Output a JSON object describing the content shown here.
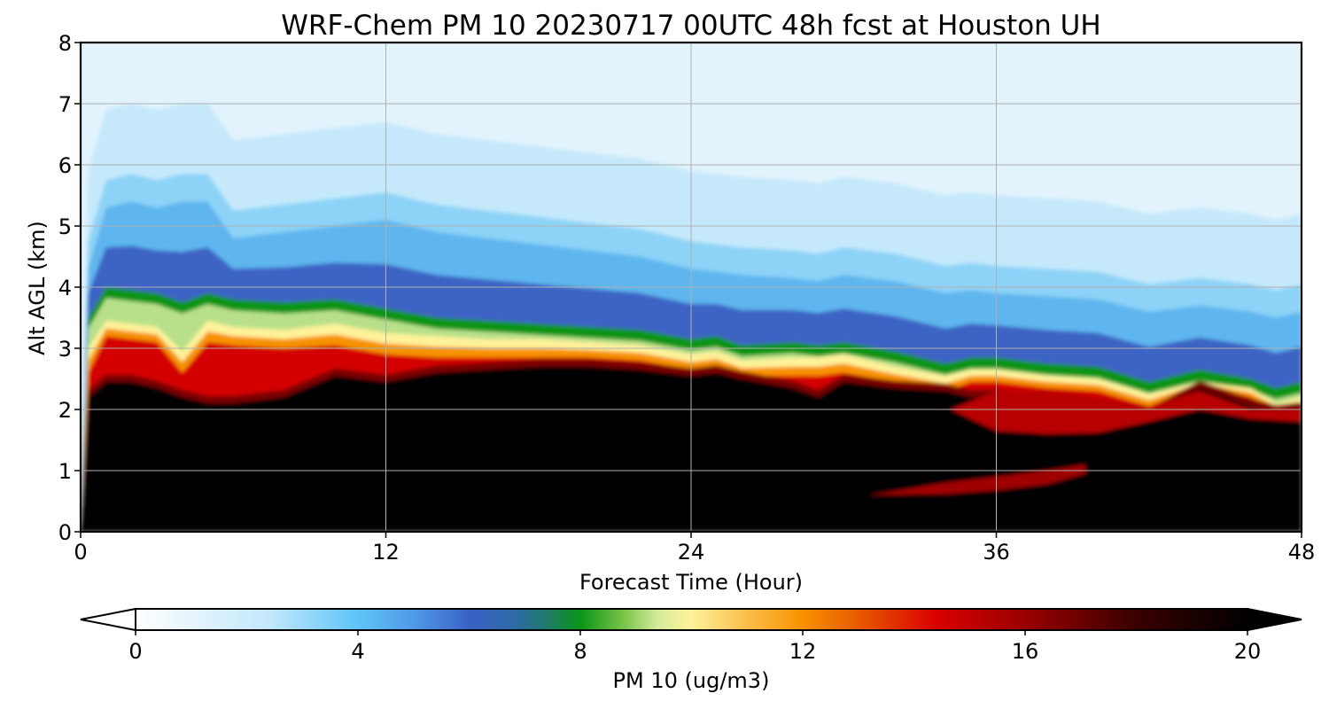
{
  "chart_data": {
    "type": "heatmap",
    "title": "WRF-Chem PM 10  20230717 00UTC 48h fcst at Houston UH",
    "xlabel": "Forecast Time (Hour)",
    "ylabel": "Alt AGL (km)",
    "xlim": [
      0,
      48
    ],
    "ylim": [
      0,
      8
    ],
    "x_ticks": [
      0,
      12,
      24,
      36,
      48
    ],
    "y_ticks": [
      0,
      1,
      2,
      3,
      4,
      5,
      6,
      7,
      8
    ],
    "grid": true,
    "colorbar": {
      "label": "PM 10  (ug/m3)",
      "min": 0,
      "max": 20,
      "levels": 80,
      "ticks": [
        0,
        4,
        8,
        12,
        16,
        20
      ],
      "extend": "both",
      "orientation": "horizontal",
      "placement": "bottom"
    },
    "profile_x": [
      0,
      0.3,
      1,
      2,
      3,
      4,
      5,
      6,
      8,
      10,
      12,
      14,
      16,
      18,
      20,
      22,
      24,
      25,
      26,
      28,
      29,
      30,
      32,
      34,
      35,
      36,
      38,
      40,
      42,
      44,
      46,
      47,
      48
    ],
    "black_core_top_km": [
      0,
      2.2,
      2.45,
      2.45,
      2.35,
      2.2,
      2.1,
      2.1,
      2.2,
      2.55,
      2.45,
      2.6,
      2.65,
      2.7,
      2.7,
      2.65,
      2.55,
      2.6,
      2.5,
      2.35,
      2.2,
      2.45,
      2.35,
      2.3,
      2.2,
      2.2,
      2.15,
      2.05,
      1.9,
      2.35,
      2.05,
      1.95,
      2.0
    ],
    "red_layer_top_km": [
      0,
      2.6,
      3.2,
      3.15,
      3.1,
      2.6,
      3.1,
      3.05,
      3.0,
      3.05,
      2.9,
      2.85,
      2.85,
      2.85,
      2.85,
      2.8,
      2.65,
      2.7,
      2.55,
      2.55,
      2.55,
      2.6,
      2.45,
      2.3,
      2.45,
      2.45,
      2.35,
      2.3,
      2.05,
      2.4,
      2.2,
      2.0,
      2.05
    ],
    "yellow_layer_top_km": [
      0,
      3.0,
      3.45,
      3.4,
      3.35,
      2.95,
      3.45,
      3.35,
      3.3,
      3.4,
      3.25,
      3.2,
      3.15,
      3.15,
      3.1,
      3.05,
      2.9,
      2.95,
      2.8,
      2.85,
      2.85,
      2.9,
      2.7,
      2.55,
      2.65,
      2.65,
      2.55,
      2.5,
      2.25,
      2.45,
      2.35,
      2.1,
      2.2
    ],
    "green_layer_top_km": [
      0,
      3.5,
      4.0,
      3.95,
      3.9,
      3.75,
      3.9,
      3.8,
      3.75,
      3.8,
      3.65,
      3.5,
      3.45,
      3.4,
      3.35,
      3.3,
      3.15,
      3.2,
      3.05,
      3.1,
      3.05,
      3.1,
      2.95,
      2.75,
      2.85,
      2.85,
      2.75,
      2.7,
      2.45,
      2.65,
      2.5,
      2.35,
      2.45
    ],
    "blue_layer_top_km": [
      0,
      4.3,
      5.3,
      5.4,
      5.3,
      5.4,
      5.4,
      4.8,
      4.9,
      5.0,
      5.1,
      4.9,
      4.8,
      4.7,
      4.6,
      4.5,
      4.3,
      4.25,
      4.2,
      4.15,
      4.1,
      4.2,
      4.1,
      3.9,
      3.95,
      3.9,
      3.85,
      3.8,
      3.6,
      3.7,
      3.6,
      3.5,
      3.6
    ],
    "secondary_plume": {
      "x": [
        31,
        34,
        36,
        38,
        39.5
      ],
      "bottom_km": [
        0.6,
        0.62,
        0.68,
        0.78,
        0.95
      ],
      "top_km": [
        0.6,
        0.8,
        0.9,
        1.0,
        1.1
      ]
    },
    "elevated_lobe": {
      "x": [
        34.2,
        36,
        38,
        40,
        42,
        44,
        46,
        48
      ],
      "bottom_km": [
        2.0,
        1.65,
        1.6,
        1.62,
        1.8,
        2.0,
        1.85,
        1.8
      ],
      "top_km": [
        2.0,
        2.3,
        2.3,
        2.2,
        2.05,
        2.3,
        2.0,
        2.0
      ]
    }
  }
}
